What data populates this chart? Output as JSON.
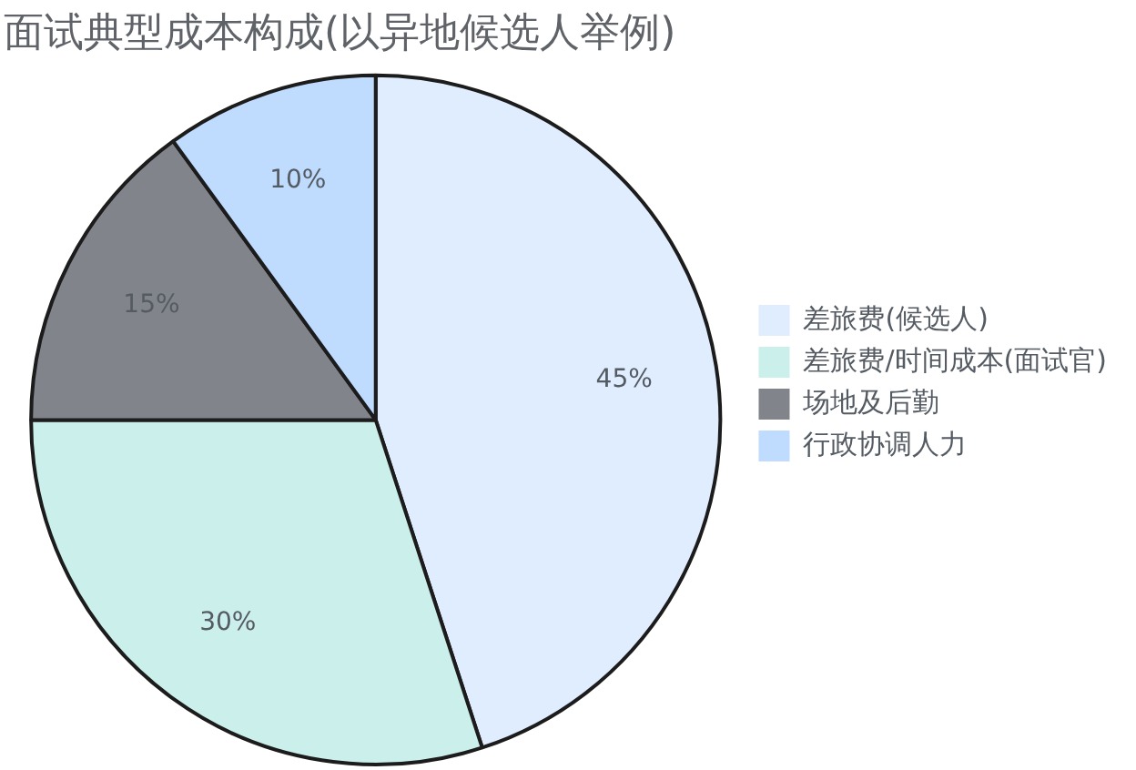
{
  "chart_data": {
    "type": "pie",
    "title": "面试典型成本构成(以异地候选人举例)",
    "categories": [
      "差旅费(候选人)",
      "差旅费/时间成本(面试官)",
      "场地及后勤",
      "行政协调人力"
    ],
    "values": [
      45,
      30,
      15,
      10
    ],
    "colors": [
      "#e0edfe",
      "#cbefeb",
      "#81848a",
      "#bfdbfe"
    ],
    "value_labels": [
      "45%",
      "30%",
      "15%",
      "10%"
    ],
    "legend": "right"
  }
}
